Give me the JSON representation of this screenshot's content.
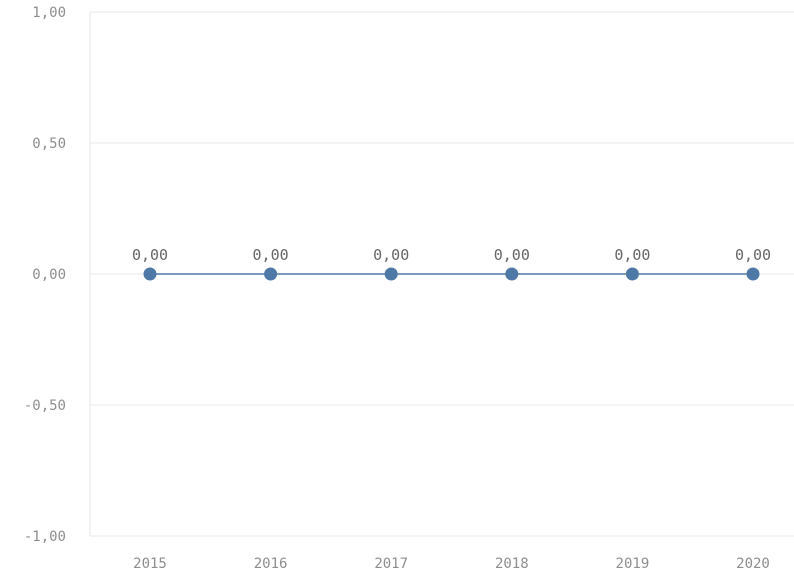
{
  "chart_data": {
    "type": "line",
    "title": "",
    "xlabel": "",
    "ylabel": "",
    "categories": [
      "2015",
      "2016",
      "2017",
      "2018",
      "2019",
      "2020"
    ],
    "series": [
      {
        "values": [
          0,
          0,
          0,
          0,
          0,
          0
        ],
        "labels": [
          "0,00",
          "0,00",
          "0,00",
          "0,00",
          "0,00",
          "0,00"
        ],
        "color": "#4e79a7"
      }
    ],
    "ylim": [
      -1,
      1
    ],
    "yticks": [
      1,
      0.5,
      0,
      -0.5,
      -1
    ],
    "ytick_labels": [
      "1,00",
      "0,50",
      "0,00",
      "-0,50",
      "-1,00"
    ],
    "grid": "horizontal",
    "legend": "none"
  }
}
